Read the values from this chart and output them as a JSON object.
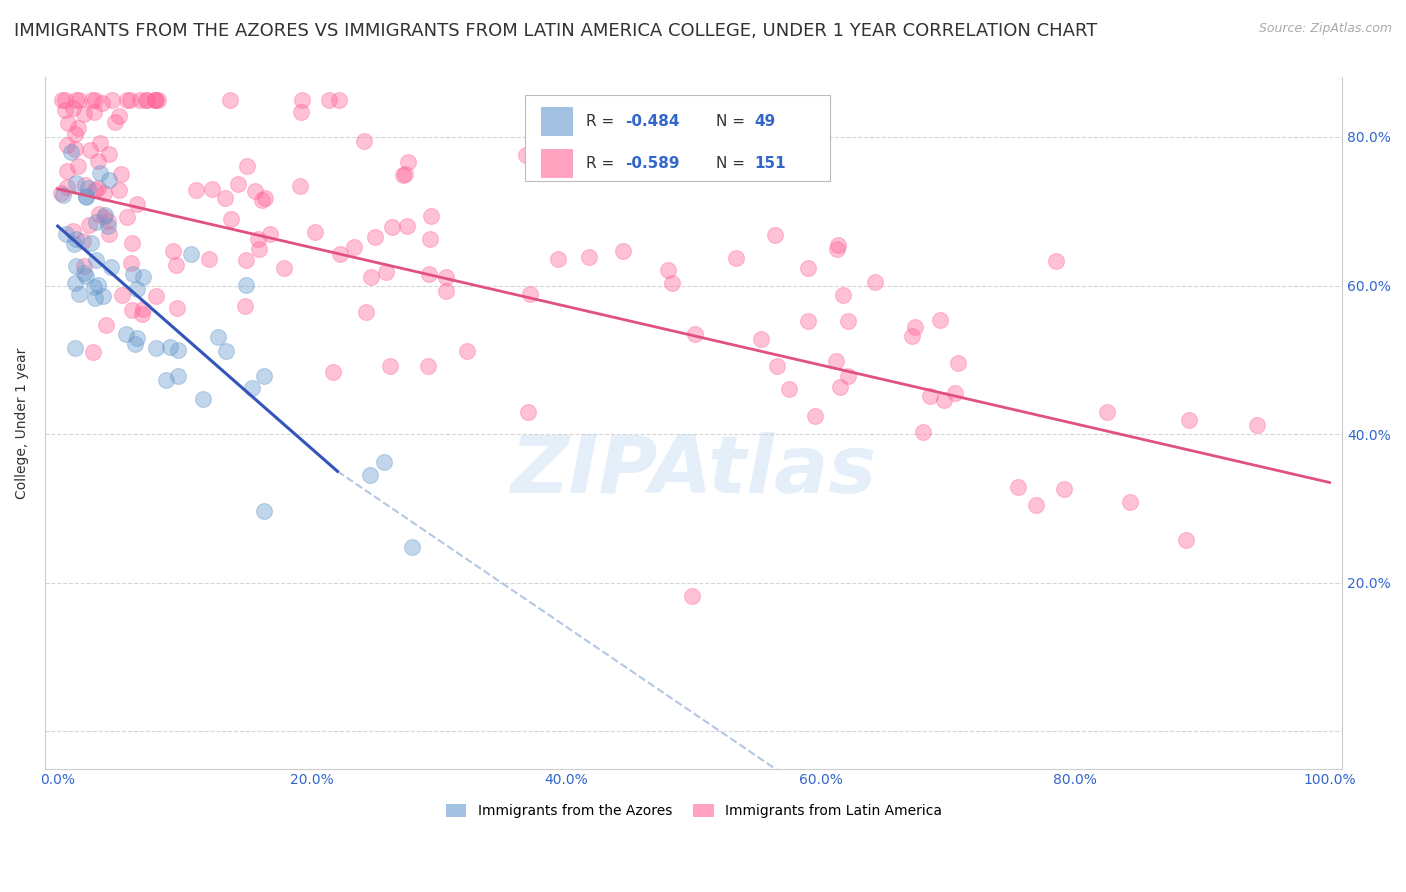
{
  "title": "IMMIGRANTS FROM THE AZORES VS IMMIGRANTS FROM LATIN AMERICA COLLEGE, UNDER 1 YEAR CORRELATION CHART",
  "source": "Source: ZipAtlas.com",
  "ylabel": "College, Under 1 year",
  "watermark": "ZIPAtlas",
  "legend1_r": "-0.484",
  "legend1_n": "49",
  "legend2_r": "-0.589",
  "legend2_n": "151",
  "color_azores": "#6699cc",
  "color_latin": "#ff6699",
  "alpha_scatter": 0.4,
  "marker_size": 130,
  "title_fontsize": 13,
  "label_fontsize": 10,
  "tick_fontsize": 10,
  "azores_seed": 77,
  "latin_seed": 33
}
